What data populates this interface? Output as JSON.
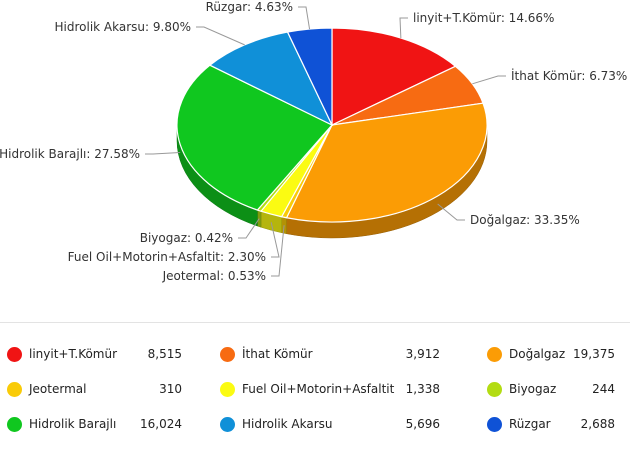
{
  "chart_data": {
    "type": "pie",
    "title": "",
    "slices": [
      {
        "label": "linyit+T.Kömür",
        "percent_label": "14.66%",
        "percent": 14.66,
        "value": 8515,
        "value_label": "8,515",
        "color": "#f01414"
      },
      {
        "label": "İthat Kömür",
        "percent_label": "6.73%",
        "percent": 6.73,
        "value": 3912,
        "value_label": "3,912",
        "color": "#f76b12"
      },
      {
        "label": "Doğalgaz",
        "percent_label": "33.35%",
        "percent": 33.35,
        "value": 19375,
        "value_label": "19,375",
        "color": "#fb9c05"
      },
      {
        "label": "Jeotermal",
        "percent_label": "0.53%",
        "percent": 0.53,
        "value": 310,
        "value_label": "310",
        "color": "#f9cb08"
      },
      {
        "label": "Fuel Oil+Motorin+Asfaltit",
        "percent_label": "2.30%",
        "percent": 2.3,
        "value": 1338,
        "value_label": "1,338",
        "color": "#fbfb12"
      },
      {
        "label": "Biyogaz",
        "percent_label": "0.42%",
        "percent": 0.42,
        "value": 244,
        "value_label": "244",
        "color": "#b3dc13"
      },
      {
        "label": "Hidrolik Barajlı",
        "percent_label": "27.58%",
        "percent": 27.58,
        "value": 16024,
        "value_label": "16,024",
        "color": "#10c71f"
      },
      {
        "label": "Hidrolik Akarsu",
        "percent_label": "9.80%",
        "percent": 9.8,
        "value": 5696,
        "value_label": "5,696",
        "color": "#1090d8"
      },
      {
        "label": "Rüzgar",
        "percent_label": "4.63%",
        "percent": 4.63,
        "value": 2688,
        "value_label": "2,688",
        "color": "#0f52d6"
      }
    ]
  }
}
